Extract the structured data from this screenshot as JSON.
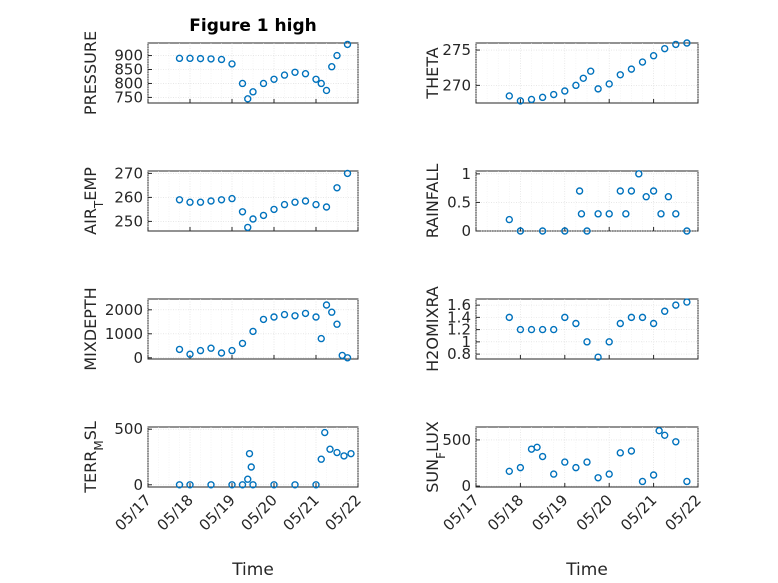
{
  "chart_data": [
    {
      "type": "scatter",
      "title": "Figure 1 high",
      "ylabel": "PRESSURE",
      "xlabel": "",
      "ylim": [
        730,
        945
      ],
      "yticks": [
        750,
        800,
        850,
        900
      ],
      "x": [
        "05/17 18:00",
        "05/18 00:00",
        "05/18 06:00",
        "05/18 12:00",
        "05/18 18:00",
        "05/19 00:00",
        "05/19 06:00",
        "05/19 09:00",
        "05/19 12:00",
        "05/19 18:00",
        "05/20 00:00",
        "05/20 06:00",
        "05/20 12:00",
        "05/20 18:00",
        "05/21 00:00",
        "05/21 03:00",
        "05/21 06:00",
        "05/21 09:00",
        "05/21 12:00",
        "05/21 18:00"
      ],
      "y": [
        890,
        890,
        889,
        888,
        886,
        870,
        800,
        745,
        770,
        800,
        815,
        830,
        840,
        835,
        815,
        800,
        775,
        860,
        900,
        940
      ]
    },
    {
      "type": "scatter",
      "ylabel": "THETA",
      "xlabel": "",
      "ylim": [
        267.5,
        276
      ],
      "yticks": [
        270,
        275
      ],
      "x": [
        "05/17 18:00",
        "05/18 00:00",
        "05/18 06:00",
        "05/18 12:00",
        "05/18 18:00",
        "05/19 00:00",
        "05/19 06:00",
        "05/19 10:00",
        "05/19 14:00",
        "05/19 18:00",
        "05/20 00:00",
        "05/20 06:00",
        "05/20 12:00",
        "05/20 18:00",
        "05/21 00:00",
        "05/21 06:00",
        "05/21 12:00",
        "05/21 18:00"
      ],
      "y": [
        268.5,
        267.8,
        268.0,
        268.3,
        268.7,
        269.2,
        270.0,
        271.0,
        272.0,
        269.5,
        270.2,
        271.5,
        272.3,
        273.3,
        274.2,
        275.2,
        275.8,
        276.0
      ]
    },
    {
      "type": "scatter",
      "ylabel": "AIR_TEMP",
      "xlabel": "",
      "ylim": [
        246,
        271
      ],
      "yticks": [
        250,
        260,
        270
      ],
      "x": [
        "05/17 18:00",
        "05/18 00:00",
        "05/18 06:00",
        "05/18 12:00",
        "05/18 18:00",
        "05/19 00:00",
        "05/19 06:00",
        "05/19 09:00",
        "05/19 12:00",
        "05/19 18:00",
        "05/20 00:00",
        "05/20 06:00",
        "05/20 12:00",
        "05/20 18:00",
        "05/21 00:00",
        "05/21 06:00",
        "05/21 12:00",
        "05/21 18:00"
      ],
      "y": [
        259,
        258,
        258,
        258.5,
        259,
        259.5,
        254,
        247.5,
        251,
        252.5,
        255,
        257,
        258,
        258.5,
        257,
        256,
        264,
        270
      ]
    },
    {
      "type": "scatter",
      "ylabel": "RAINFALL",
      "xlabel": "",
      "ylim": [
        0,
        1.05
      ],
      "yticks": [
        0,
        0.5,
        1
      ],
      "x": [
        "05/17 18:00",
        "05/18 00:00",
        "05/18 12:00",
        "05/19 00:00",
        "05/19 08:00",
        "05/19 09:00",
        "05/19 12:00",
        "05/19 18:00",
        "05/20 00:00",
        "05/20 06:00",
        "05/20 09:00",
        "05/20 12:00",
        "05/20 16:00",
        "05/20 20:00",
        "05/21 00:00",
        "05/21 04:00",
        "05/21 08:00",
        "05/21 12:00",
        "05/21 18:00"
      ],
      "y": [
        0.2,
        0,
        0,
        0,
        0.7,
        0.3,
        0,
        0.3,
        0.3,
        0.7,
        0.3,
        0.7,
        1.0,
        0.6,
        0.7,
        0.3,
        0.6,
        0.3,
        0
      ]
    },
    {
      "type": "scatter",
      "ylabel": "MIXDEPTH",
      "xlabel": "",
      "ylim": [
        -50,
        2450
      ],
      "yticks": [
        0,
        1000,
        2000
      ],
      "x": [
        "05/17 18:00",
        "05/18 00:00",
        "05/18 06:00",
        "05/18 12:00",
        "05/18 18:00",
        "05/19 00:00",
        "05/19 06:00",
        "05/19 12:00",
        "05/19 18:00",
        "05/20 00:00",
        "05/20 06:00",
        "05/20 12:00",
        "05/20 18:00",
        "05/21 00:00",
        "05/21 03:00",
        "05/21 06:00",
        "05/21 09:00",
        "05/21 12:00",
        "05/21 15:00",
        "05/21 18:00"
      ],
      "y": [
        350,
        150,
        300,
        400,
        200,
        300,
        600,
        1100,
        1600,
        1700,
        1800,
        1750,
        1850,
        1700,
        800,
        2200,
        1900,
        1400,
        100,
        0
      ]
    },
    {
      "type": "scatter",
      "ylabel": "H2OMIXRA",
      "xlabel": "",
      "ylim": [
        0.72,
        1.7
      ],
      "yticks": [
        0.8,
        1,
        1.2,
        1.4,
        1.6
      ],
      "x": [
        "05/17 18:00",
        "05/18 00:00",
        "05/18 06:00",
        "05/18 12:00",
        "05/18 18:00",
        "05/19 00:00",
        "05/19 06:00",
        "05/19 12:00",
        "05/19 18:00",
        "05/20 00:00",
        "05/20 06:00",
        "05/20 12:00",
        "05/20 18:00",
        "05/21 00:00",
        "05/21 06:00",
        "05/21 12:00",
        "05/21 18:00"
      ],
      "y": [
        1.4,
        1.2,
        1.2,
        1.2,
        1.2,
        1.4,
        1.3,
        1.0,
        0.75,
        1.0,
        1.3,
        1.4,
        1.4,
        1.3,
        1.5,
        1.6,
        1.65
      ]
    },
    {
      "type": "scatter",
      "ylabel": "TERR_MSL",
      "xlabel": "Time",
      "ylim": [
        -20,
        520
      ],
      "yticks": [
        0,
        500
      ],
      "xticks": [
        "05/17",
        "05/18",
        "05/19",
        "05/20",
        "05/21",
        "05/22"
      ],
      "x": [
        "05/17 18:00",
        "05/18 00:00",
        "05/18 12:00",
        "05/19 00:00",
        "05/19 06:00",
        "05/19 09:00",
        "05/19 10:00",
        "05/19 11:00",
        "05/19 12:00",
        "05/20 00:00",
        "05/20 12:00",
        "05/21 00:00",
        "05/21 03:00",
        "05/21 05:00",
        "05/21 08:00",
        "05/21 12:00",
        "05/21 16:00",
        "05/21 20:00"
      ],
      "y": [
        0,
        0,
        0,
        0,
        0,
        50,
        280,
        160,
        0,
        0,
        0,
        0,
        230,
        470,
        320,
        290,
        260,
        280
      ]
    },
    {
      "type": "scatter",
      "ylabel": "SUN_FLUX",
      "xlabel": "Time",
      "ylim": [
        -10,
        640
      ],
      "yticks": [
        0,
        500
      ],
      "xticks": [
        "05/17",
        "05/18",
        "05/19",
        "05/20",
        "05/21",
        "05/22"
      ],
      "x": [
        "05/17 18:00",
        "05/18 00:00",
        "05/18 06:00",
        "05/18 09:00",
        "05/18 12:00",
        "05/18 18:00",
        "05/19 00:00",
        "05/19 06:00",
        "05/19 12:00",
        "05/19 18:00",
        "05/20 00:00",
        "05/20 06:00",
        "05/20 12:00",
        "05/20 18:00",
        "05/21 00:00",
        "05/21 03:00",
        "05/21 06:00",
        "05/21 12:00",
        "05/21 18:00"
      ],
      "y": [
        160,
        200,
        400,
        420,
        320,
        130,
        260,
        200,
        260,
        90,
        130,
        360,
        380,
        50,
        120,
        600,
        550,
        480,
        50
      ]
    }
  ],
  "style": {
    "marker_color": "#0072BD",
    "axis_color": "#262626",
    "x_start": "05/17 00:00",
    "x_end": "05/22 00:00"
  }
}
